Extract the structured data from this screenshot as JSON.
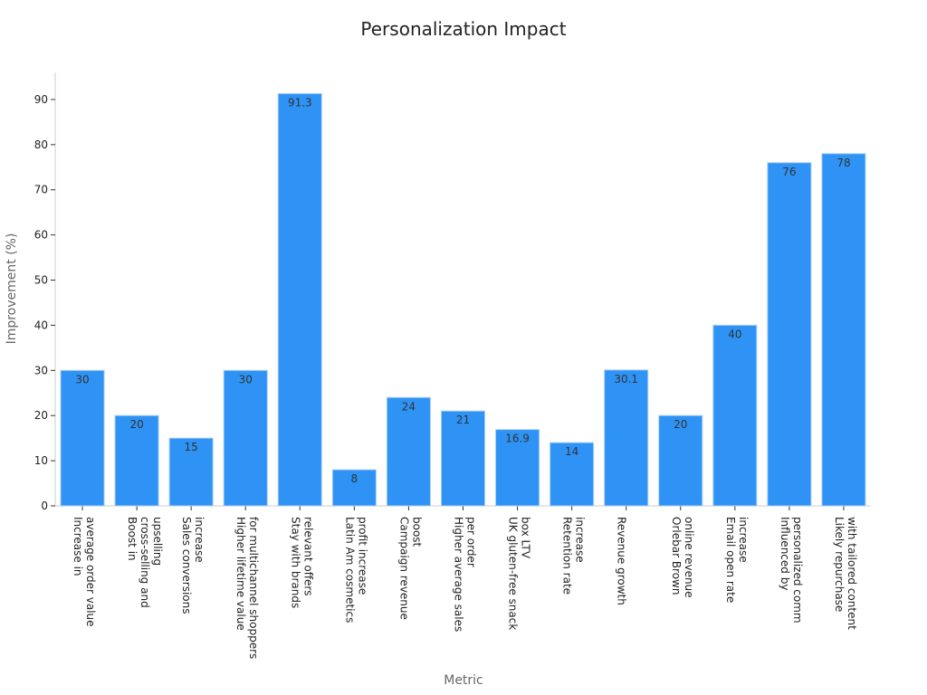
{
  "chart_data": {
    "type": "bar",
    "title": "Personalization Impact",
    "xlabel": "Metric",
    "ylabel": "Improvement (%)",
    "ylim": [
      0,
      96
    ],
    "yticks": [
      0,
      10,
      20,
      30,
      40,
      50,
      60,
      70,
      80,
      90
    ],
    "grid": false,
    "categories": [
      [
        "Increase in",
        "average order value"
      ],
      [
        "Boost in",
        "cross-selling and",
        "upselling"
      ],
      [
        "Sales conversions",
        "increase"
      ],
      [
        "Higher lifetime value",
        "for multichannel shoppers"
      ],
      [
        "Stay with brands",
        "relevant offers"
      ],
      [
        "Latin Am cosmetics",
        "profit increase"
      ],
      [
        "Campaign revenue",
        "boost"
      ],
      [
        "Higher average sales",
        "per order"
      ],
      [
        "UK gluten-free snack",
        "box LTV"
      ],
      [
        "Retention rate",
        "increase"
      ],
      [
        "Revenue growth"
      ],
      [
        "Orlebar Brown",
        "online revenue"
      ],
      [
        "Email open rate",
        "increase"
      ],
      [
        "Influenced by",
        "personalized comm"
      ],
      [
        "Likely repurchase",
        "with tailored content"
      ]
    ],
    "values": [
      30,
      20,
      15,
      30,
      91.3,
      8,
      24,
      21,
      16.9,
      14,
      30.1,
      20,
      40,
      76,
      78
    ],
    "value_labels": [
      "30",
      "20",
      "15",
      "30",
      "91.3",
      "8",
      "24",
      "21",
      "16.9",
      "14",
      "30.1",
      "20",
      "40",
      "76",
      "78"
    ],
    "bar_color": "#2e93f5"
  }
}
